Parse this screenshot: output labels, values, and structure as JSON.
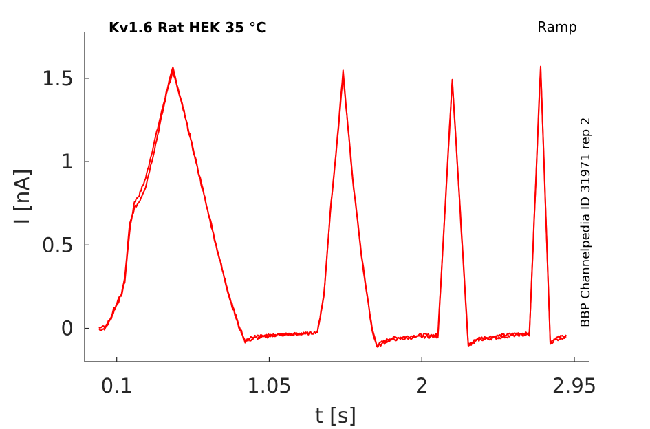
{
  "chart_data": {
    "type": "line",
    "title": "Kv1.6  Rat  HEK  35 °C",
    "protocol": "Ramp",
    "source": "BBP Channelpedia ID 31971 rep 2",
    "xlabel": "t [s]",
    "ylabel": "I [nA]",
    "xlim": [
      -0.1,
      3.04
    ],
    "ylim": [
      -0.2,
      1.78
    ],
    "xticks": [
      0.1,
      1.05,
      2,
      2.95
    ],
    "xtick_labels": [
      "0.1",
      "1.05",
      "2",
      "2.95"
    ],
    "yticks": [
      0,
      0.5,
      1,
      1.5
    ],
    "ytick_labels": [
      "0",
      "0.5",
      "1",
      "1.5"
    ],
    "grid": false,
    "color": "#ff0000",
    "series": [
      {
        "points": [
          [
            -0.01,
            -0.01
          ],
          [
            0.03,
            0.0
          ],
          [
            0.06,
            0.05
          ],
          [
            0.09,
            0.12
          ],
          [
            0.13,
            0.2
          ],
          [
            0.15,
            0.28
          ],
          [
            0.18,
            0.58
          ],
          [
            0.21,
            0.76
          ],
          [
            0.24,
            0.8
          ],
          [
            0.28,
            0.9
          ],
          [
            0.33,
            1.1
          ],
          [
            0.38,
            1.3
          ],
          [
            0.42,
            1.46
          ],
          [
            0.45,
            1.56
          ],
          [
            0.52,
            1.3
          ],
          [
            0.62,
            0.9
          ],
          [
            0.72,
            0.5
          ],
          [
            0.8,
            0.2
          ],
          [
            0.86,
            0.02
          ],
          [
            0.9,
            -0.07
          ],
          [
            0.96,
            -0.05
          ],
          [
            1.1,
            -0.04
          ],
          [
            1.3,
            -0.03
          ],
          [
            1.35,
            -0.02
          ],
          [
            1.39,
            0.2
          ],
          [
            1.43,
            0.7
          ],
          [
            1.47,
            1.1
          ],
          [
            1.51,
            1.54
          ],
          [
            1.57,
            0.9
          ],
          [
            1.63,
            0.4
          ],
          [
            1.69,
            0.0
          ],
          [
            1.72,
            -0.1
          ],
          [
            1.8,
            -0.06
          ],
          [
            2.0,
            -0.04
          ],
          [
            2.1,
            -0.04
          ],
          [
            2.19,
            1.5
          ],
          [
            2.29,
            -0.1
          ],
          [
            2.35,
            -0.06
          ],
          [
            2.6,
            -0.03
          ],
          [
            2.67,
            -0.03
          ],
          [
            2.74,
            1.58
          ],
          [
            2.8,
            -0.08
          ],
          [
            2.83,
            -0.06
          ],
          [
            2.9,
            -0.04
          ]
        ]
      },
      {
        "points": [
          [
            -0.01,
            0.0
          ],
          [
            0.03,
            0.01
          ],
          [
            0.06,
            0.06
          ],
          [
            0.09,
            0.13
          ],
          [
            0.13,
            0.21
          ],
          [
            0.15,
            0.3
          ],
          [
            0.18,
            0.62
          ],
          [
            0.21,
            0.72
          ],
          [
            0.24,
            0.76
          ],
          [
            0.28,
            0.85
          ],
          [
            0.33,
            1.05
          ],
          [
            0.38,
            1.27
          ],
          [
            0.42,
            1.45
          ],
          [
            0.45,
            1.54
          ],
          [
            0.52,
            1.29
          ],
          [
            0.62,
            0.89
          ],
          [
            0.72,
            0.49
          ],
          [
            0.8,
            0.19
          ],
          [
            0.86,
            0.01
          ],
          [
            0.9,
            -0.08
          ],
          [
            0.96,
            -0.06
          ],
          [
            1.1,
            -0.04
          ],
          [
            1.3,
            -0.03
          ],
          [
            1.35,
            -0.02
          ],
          [
            1.39,
            0.19
          ],
          [
            1.43,
            0.69
          ],
          [
            1.47,
            1.09
          ],
          [
            1.51,
            1.52
          ],
          [
            1.57,
            0.89
          ],
          [
            1.63,
            0.39
          ],
          [
            1.69,
            -0.01
          ],
          [
            1.72,
            -0.11
          ],
          [
            1.8,
            -0.07
          ],
          [
            2.0,
            -0.05
          ],
          [
            2.1,
            -0.05
          ],
          [
            2.19,
            1.48
          ],
          [
            2.29,
            -0.11
          ],
          [
            2.35,
            -0.07
          ],
          [
            2.6,
            -0.04
          ],
          [
            2.67,
            -0.04
          ],
          [
            2.74,
            1.56
          ],
          [
            2.8,
            -0.09
          ],
          [
            2.83,
            -0.07
          ],
          [
            2.9,
            -0.05
          ]
        ]
      }
    ]
  }
}
